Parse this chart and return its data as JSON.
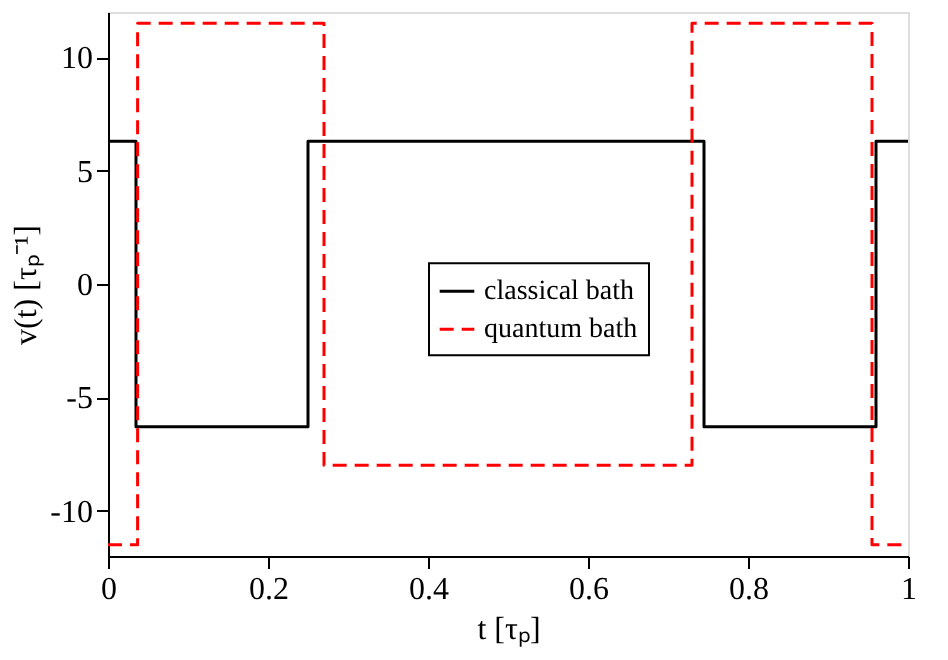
{
  "chart_data": {
    "type": "step",
    "xlabel": "t [τₚ]",
    "ylabel": "v(t) [τₚ⁻¹]",
    "xlim": [
      0,
      1
    ],
    "xticks": [
      0,
      0.2,
      0.4,
      0.6,
      0.8,
      1
    ],
    "ylim": [
      -12,
      12
    ],
    "yticks": [
      -10,
      -5,
      0,
      5,
      10
    ],
    "grid": false,
    "legend": "center",
    "series": [
      {
        "name": "classical bath",
        "color": "#000000",
        "line_style": "solid",
        "x": [
          0,
          0.035,
          0.25,
          0.745,
          0.96,
          1
        ],
        "values": [
          6.3,
          -6.3,
          6.3,
          -6.3,
          6.3,
          6.3
        ]
      },
      {
        "name": "quantum bath",
        "color": "#ff0000",
        "line_style": "dashed",
        "x": [
          0,
          0.037,
          0.27,
          0.73,
          0.955,
          1
        ],
        "values": [
          -11.5,
          11.5,
          -8,
          11.5,
          -11.5,
          -11.5
        ]
      }
    ]
  }
}
